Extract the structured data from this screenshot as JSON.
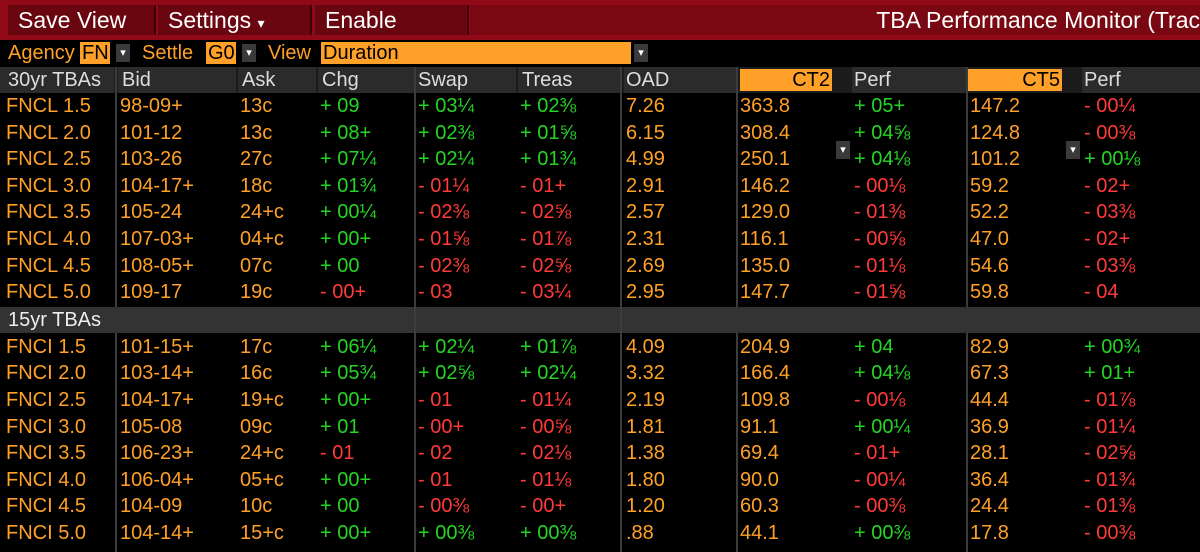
{
  "toolbar": {
    "save_view": "Save View",
    "settings": "Settings",
    "settings_caret": "▾",
    "enable_swap": "Enable Swap",
    "title": "TBA Performance Monitor (Trac"
  },
  "filters": {
    "agency_label": "Agency",
    "agency_value": "FN",
    "settle_label": "Settle",
    "settle_value": "G0",
    "view_label": "View",
    "view_value": "Duration"
  },
  "headers": {
    "name": "30yr TBAs",
    "bid": "Bid",
    "ask": "Ask",
    "chg": "Chg",
    "swap": "Swap",
    "treas": "Treas",
    "oad": "OAD",
    "ct2": "CT2",
    "perf1": "Perf",
    "ct5": "CT5",
    "perf2": "Perf"
  },
  "section2": "15yr TBAs",
  "rows30": [
    {
      "name": "FNCL 1.5",
      "bid": "98-09+",
      "ask": "13c",
      "chg": "+ 09",
      "chg_s": "p",
      "swap": "+ 03¼",
      "swap_s": "p",
      "treas": "+ 02⅜",
      "treas_s": "p",
      "oad": "7.26",
      "ct2": "363.8",
      "perf1": "+ 05+",
      "perf1_s": "p",
      "ct5": "147.2",
      "perf2": "- 00¼",
      "perf2_s": "n"
    },
    {
      "name": "FNCL 2.0",
      "bid": "101-12",
      "ask": "13c",
      "chg": "+ 08+",
      "chg_s": "p",
      "swap": "+ 02⅜",
      "swap_s": "p",
      "treas": "+ 01⅝",
      "treas_s": "p",
      "oad": "6.15",
      "ct2": "308.4",
      "perf1": "+ 04⅝",
      "perf1_s": "p",
      "ct5": "124.8",
      "perf2": "- 00⅜",
      "perf2_s": "n"
    },
    {
      "name": "FNCL 2.5",
      "bid": "103-26",
      "ask": "27c",
      "chg": "+ 07¼",
      "chg_s": "p",
      "swap": "+ 02¼",
      "swap_s": "p",
      "treas": "+ 01¾",
      "treas_s": "p",
      "oad": "4.99",
      "ct2": "250.1",
      "perf1": "+ 04⅛",
      "perf1_s": "p",
      "ct5": "101.2",
      "perf2": "+ 00⅛",
      "perf2_s": "p"
    },
    {
      "name": "FNCL 3.0",
      "bid": "104-17+",
      "ask": "18c",
      "chg": "+ 01¾",
      "chg_s": "p",
      "swap": "- 01¼",
      "swap_s": "n",
      "treas": "- 01+",
      "treas_s": "n",
      "oad": "2.91",
      "ct2": "146.2",
      "perf1": "- 00⅛",
      "perf1_s": "n",
      "ct5": "59.2",
      "perf2": "- 02+",
      "perf2_s": "n"
    },
    {
      "name": "FNCL 3.5",
      "bid": "105-24",
      "ask": "24+c",
      "chg": "+ 00¼",
      "chg_s": "p",
      "swap": "- 02⅜",
      "swap_s": "n",
      "treas": "- 02⅝",
      "treas_s": "n",
      "oad": "2.57",
      "ct2": "129.0",
      "perf1": "- 01⅜",
      "perf1_s": "n",
      "ct5": "52.2",
      "perf2": "- 03⅜",
      "perf2_s": "n"
    },
    {
      "name": "FNCL 4.0",
      "bid": "107-03+",
      "ask": "04+c",
      "chg": "+ 00+",
      "chg_s": "p",
      "swap": "- 01⅝",
      "swap_s": "n",
      "treas": "- 01⅞",
      "treas_s": "n",
      "oad": "2.31",
      "ct2": "116.1",
      "perf1": "- 00⅝",
      "perf1_s": "n",
      "ct5": "47.0",
      "perf2": "- 02+",
      "perf2_s": "n"
    },
    {
      "name": "FNCL 4.5",
      "bid": "108-05+",
      "ask": "07c",
      "chg": "+ 00",
      "chg_s": "p",
      "swap": "- 02⅜",
      "swap_s": "n",
      "treas": "- 02⅝",
      "treas_s": "n",
      "oad": "2.69",
      "ct2": "135.0",
      "perf1": "- 01⅛",
      "perf1_s": "n",
      "ct5": "54.6",
      "perf2": "- 03⅜",
      "perf2_s": "n"
    },
    {
      "name": "FNCL 5.0",
      "bid": "109-17",
      "ask": "19c",
      "chg": "- 00+",
      "chg_s": "n",
      "swap": "- 03",
      "swap_s": "n",
      "treas": "- 03¼",
      "treas_s": "n",
      "oad": "2.95",
      "ct2": "147.7",
      "perf1": "- 01⅝",
      "perf1_s": "n",
      "ct5": "59.8",
      "perf2": "- 04",
      "perf2_s": "n"
    }
  ],
  "rows15": [
    {
      "name": "FNCI 1.5",
      "bid": "101-15+",
      "ask": "17c",
      "chg": "+ 06¼",
      "chg_s": "p",
      "swap": "+ 02¼",
      "swap_s": "p",
      "treas": "+ 01⅞",
      "treas_s": "p",
      "oad": "4.09",
      "ct2": "204.9",
      "perf1": "+ 04",
      "perf1_s": "p",
      "ct5": "82.9",
      "perf2": "+ 00¾",
      "perf2_s": "p"
    },
    {
      "name": "FNCI 2.0",
      "bid": "103-14+",
      "ask": "16c",
      "chg": "+ 05¾",
      "chg_s": "p",
      "swap": "+ 02⅝",
      "swap_s": "p",
      "treas": "+ 02¼",
      "treas_s": "p",
      "oad": "3.32",
      "ct2": "166.4",
      "perf1": "+ 04⅛",
      "perf1_s": "p",
      "ct5": "67.3",
      "perf2": "+ 01+",
      "perf2_s": "p"
    },
    {
      "name": "FNCI 2.5",
      "bid": "104-17+",
      "ask": "19+c",
      "chg": "+ 00+",
      "chg_s": "p",
      "swap": "- 01",
      "swap_s": "n",
      "treas": "- 01¼",
      "treas_s": "n",
      "oad": "2.19",
      "ct2": "109.8",
      "perf1": "- 00⅛",
      "perf1_s": "n",
      "ct5": "44.4",
      "perf2": "- 01⅞",
      "perf2_s": "n"
    },
    {
      "name": "FNCI 3.0",
      "bid": "105-08",
      "ask": "09c",
      "chg": "+ 01",
      "chg_s": "p",
      "swap": "- 00+",
      "swap_s": "n",
      "treas": "- 00⅝",
      "treas_s": "n",
      "oad": "1.81",
      "ct2": "91.1",
      "perf1": "+ 00¼",
      "perf1_s": "p",
      "ct5": "36.9",
      "perf2": "- 01¼",
      "perf2_s": "n"
    },
    {
      "name": "FNCI 3.5",
      "bid": "106-23+",
      "ask": "24+c",
      "chg": "- 01",
      "chg_s": "n",
      "swap": "- 02",
      "swap_s": "n",
      "treas": "- 02⅛",
      "treas_s": "n",
      "oad": "1.38",
      "ct2": "69.4",
      "perf1": "- 01+",
      "perf1_s": "n",
      "ct5": "28.1",
      "perf2": "- 02⅝",
      "perf2_s": "n"
    },
    {
      "name": "FNCI 4.0",
      "bid": "106-04+",
      "ask": "05+c",
      "chg": "+ 00+",
      "chg_s": "p",
      "swap": "- 01",
      "swap_s": "n",
      "treas": "- 01⅛",
      "treas_s": "n",
      "oad": "1.80",
      "ct2": "90.0",
      "perf1": "- 00¼",
      "perf1_s": "n",
      "ct5": "36.4",
      "perf2": "- 01¾",
      "perf2_s": "n"
    },
    {
      "name": "FNCI 4.5",
      "bid": "104-09",
      "ask": "10c",
      "chg": "+ 00",
      "chg_s": "p",
      "swap": "- 00⅜",
      "swap_s": "n",
      "treas": "- 00+",
      "treas_s": "n",
      "oad": "1.20",
      "ct2": "60.3",
      "perf1": "- 00⅜",
      "perf1_s": "n",
      "ct5": "24.4",
      "perf2": "- 01⅜",
      "perf2_s": "n"
    },
    {
      "name": "FNCI 5.0",
      "bid": "104-14+",
      "ask": "15+c",
      "chg": "+ 00+",
      "chg_s": "p",
      "swap": "+ 00⅜",
      "swap_s": "p",
      "treas": "+ 00⅜",
      "treas_s": "p",
      "oad": ".88",
      "ct2": "44.1",
      "perf1": "+ 00⅜",
      "perf1_s": "p",
      "ct5": "17.8",
      "perf2": "- 00⅜",
      "perf2_s": "n"
    }
  ],
  "colors": {
    "orange": "#ffa028",
    "green": "#25d425",
    "red": "#ff3a3a",
    "toolbar": "#8f0a16"
  }
}
